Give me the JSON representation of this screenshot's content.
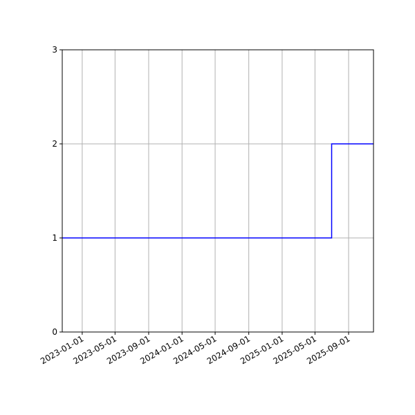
{
  "chart_data": {
    "type": "line",
    "step": "post",
    "title": "",
    "xlabel": "",
    "ylabel": "",
    "grid": true,
    "legend": "none",
    "xlim": [
      "2022-10-20",
      "2025-12-01"
    ],
    "ylim": [
      0,
      3
    ],
    "x_ticks": [
      "2023-01-01",
      "2023-05-01",
      "2023-09-01",
      "2024-01-01",
      "2024-05-01",
      "2024-09-01",
      "2025-01-01",
      "2025-05-01",
      "2025-09-01"
    ],
    "y_ticks": [
      "0",
      "1",
      "2",
      "3"
    ],
    "series": [
      {
        "color": "#0000ff",
        "points": [
          {
            "x": "2022-10-20",
            "y": 1
          },
          {
            "x": "2025-07-01",
            "y": 2
          },
          {
            "x": "2025-12-01",
            "y": 2
          }
        ]
      }
    ]
  }
}
